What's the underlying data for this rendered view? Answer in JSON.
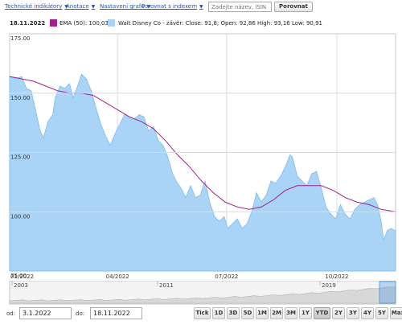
{
  "toolbar": {
    "links": [
      "Technické indikátory",
      "Anotace",
      "Nastavení grafu",
      "Porovnat s indexem"
    ],
    "search_placeholder": "Zadejte název, ISIN nebo",
    "compare_label": "Porovnat"
  },
  "legend": {
    "date": "18.11.2022",
    "ema_label": "EMA (50): 100,03",
    "price_label": "Walt Disney Co - závěr: Close: 91,8; Open: 92,86 High: 93,16 Low: 90,91",
    "ema_color": "#a0208f",
    "price_color": "#a9d4f5"
  },
  "chart_data": {
    "type": "area",
    "y_ticks": [
      "175.00",
      "150.00",
      "125.00",
      "100.00",
      "75.00"
    ],
    "ylim": [
      75,
      175
    ],
    "x_ticks": [
      {
        "label": "01/2022",
        "day": 0
      },
      {
        "label": "04/2022",
        "day": 90
      },
      {
        "label": "07/2022",
        "day": 181
      },
      {
        "label": "10/2022",
        "day": 273
      }
    ],
    "x_range_days": [
      0,
      322
    ],
    "series": [
      {
        "name": "Walt Disney Co - závěr",
        "kind": "area",
        "points": [
          [
            0,
            157
          ],
          [
            5,
            156
          ],
          [
            10,
            157
          ],
          [
            14,
            152
          ],
          [
            18,
            151
          ],
          [
            22,
            142
          ],
          [
            25,
            135
          ],
          [
            28,
            131
          ],
          [
            32,
            138
          ],
          [
            36,
            141
          ],
          [
            38,
            148
          ],
          [
            42,
            153
          ],
          [
            46,
            152
          ],
          [
            50,
            154
          ],
          [
            53,
            148
          ],
          [
            56,
            152
          ],
          [
            60,
            158
          ],
          [
            64,
            156
          ],
          [
            68,
            151
          ],
          [
            72,
            144
          ],
          [
            76,
            137
          ],
          [
            80,
            132
          ],
          [
            84,
            128
          ],
          [
            88,
            133
          ],
          [
            92,
            137
          ],
          [
            96,
            141
          ],
          [
            100,
            140
          ],
          [
            104,
            139
          ],
          [
            108,
            141
          ],
          [
            112,
            140
          ],
          [
            116,
            134
          ],
          [
            120,
            136
          ],
          [
            124,
            130
          ],
          [
            128,
            128
          ],
          [
            132,
            123
          ],
          [
            136,
            116
          ],
          [
            140,
            112
          ],
          [
            143,
            110
          ],
          [
            147,
            106
          ],
          [
            151,
            111
          ],
          [
            155,
            106
          ],
          [
            159,
            107
          ],
          [
            163,
            113
          ],
          [
            167,
            104
          ],
          [
            171,
            98
          ],
          [
            175,
            96
          ],
          [
            179,
            98
          ],
          [
            182,
            93
          ],
          [
            186,
            95
          ],
          [
            190,
            97
          ],
          [
            194,
            93
          ],
          [
            198,
            95
          ],
          [
            202,
            100
          ],
          [
            206,
            108
          ],
          [
            210,
            104
          ],
          [
            214,
            107
          ],
          [
            218,
            113
          ],
          [
            222,
            112
          ],
          [
            226,
            115
          ],
          [
            230,
            119
          ],
          [
            234,
            124
          ],
          [
            236,
            123
          ],
          [
            240,
            115
          ],
          [
            244,
            113
          ],
          [
            248,
            111
          ],
          [
            252,
            116
          ],
          [
            256,
            117
          ],
          [
            260,
            110
          ],
          [
            264,
            102
          ],
          [
            268,
            99
          ],
          [
            272,
            97
          ],
          [
            276,
            103
          ],
          [
            280,
            99
          ],
          [
            284,
            97
          ],
          [
            288,
            101
          ],
          [
            292,
            103
          ],
          [
            296,
            104
          ],
          [
            300,
            105
          ],
          [
            304,
            106
          ],
          [
            307,
            103
          ],
          [
            310,
            96
          ],
          [
            312,
            88
          ],
          [
            315,
            92
          ],
          [
            318,
            93
          ],
          [
            322,
            92
          ]
        ]
      },
      {
        "name": "EMA (50)",
        "kind": "line",
        "points": [
          [
            0,
            157
          ],
          [
            10,
            156
          ],
          [
            20,
            155
          ],
          [
            30,
            153
          ],
          [
            40,
            151
          ],
          [
            50,
            150
          ],
          [
            60,
            150
          ],
          [
            70,
            149
          ],
          [
            80,
            146
          ],
          [
            90,
            143
          ],
          [
            100,
            140
          ],
          [
            110,
            138
          ],
          [
            120,
            135
          ],
          [
            130,
            130
          ],
          [
            140,
            124
          ],
          [
            150,
            119
          ],
          [
            160,
            113
          ],
          [
            170,
            108
          ],
          [
            180,
            104
          ],
          [
            190,
            102
          ],
          [
            200,
            101
          ],
          [
            210,
            102
          ],
          [
            220,
            105
          ],
          [
            230,
            109
          ],
          [
            240,
            111
          ],
          [
            250,
            111
          ],
          [
            260,
            111
          ],
          [
            270,
            109
          ],
          [
            280,
            106
          ],
          [
            290,
            104
          ],
          [
            300,
            103
          ],
          [
            310,
            101
          ],
          [
            322,
            100
          ]
        ]
      }
    ]
  },
  "navigator": {
    "year_labels": [
      "2003",
      "2011",
      "2019"
    ]
  },
  "range": {
    "from_label": "od:",
    "from_value": "3.1.2022",
    "to_label": "do:",
    "to_value": "18.11.2022",
    "buttons": [
      "Tick",
      "1D",
      "3D",
      "5D",
      "1M",
      "2M",
      "3M",
      "1Y",
      "YTD",
      "2Y",
      "3Y",
      "4Y",
      "5Y",
      "Max"
    ],
    "active": "YTD"
  }
}
